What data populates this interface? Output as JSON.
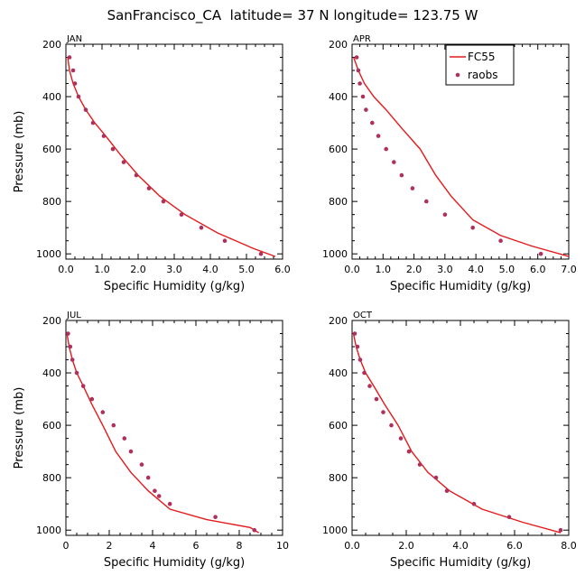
{
  "figure": {
    "title": "SanFrancisco_CA  latitude= 37 N longitude= 123.75 W"
  },
  "chart_data": [
    {
      "type": "line",
      "panel": "JAN",
      "xlabel": "Specific Humidity (g/kg)",
      "ylabel": "Pressure (mb)",
      "xlim": [
        0,
        6
      ],
      "ylim": [
        1020,
        200
      ],
      "xticks": [
        "0.0",
        "1.0",
        "2.0",
        "3.0",
        "4.0",
        "5.0",
        "6.0"
      ],
      "xtick_values": [
        0,
        1,
        2,
        3,
        4,
        5,
        6
      ],
      "yticks": [
        "200",
        "400",
        "600",
        "800",
        "1000"
      ],
      "ytick_values": [
        200,
        400,
        600,
        800,
        1000
      ],
      "grid": false,
      "legend": null,
      "series": [
        {
          "name": "FC55",
          "style": "line",
          "color": "#e41a1c",
          "x": [
            0.05,
            0.1,
            0.2,
            0.35,
            0.55,
            0.8,
            1.1,
            1.5,
            2.0,
            2.6,
            3.3,
            4.2,
            5.2,
            5.8
          ],
          "y": [
            250,
            300,
            350,
            400,
            450,
            500,
            550,
            620,
            700,
            780,
            850,
            920,
            980,
            1010
          ]
        },
        {
          "name": "raobs",
          "style": "markers",
          "color": "#b0305c",
          "x": [
            0.1,
            0.2,
            0.25,
            0.35,
            0.55,
            0.75,
            1.05,
            1.3,
            1.6,
            1.95,
            2.3,
            2.7,
            3.2,
            3.75,
            4.4,
            5.4
          ],
          "y": [
            250,
            300,
            350,
            400,
            450,
            500,
            550,
            600,
            650,
            700,
            750,
            800,
            850,
            900,
            950,
            1000
          ]
        }
      ]
    },
    {
      "type": "line",
      "panel": "APR",
      "xlabel": "Specific Humidity (g/kg)",
      "ylabel": "",
      "xlim": [
        0,
        7
      ],
      "ylim": [
        1020,
        200
      ],
      "xticks": [
        "0.0",
        "1.0",
        "2.0",
        "3.0",
        "4.0",
        "5.0",
        "6.0",
        "7.0"
      ],
      "xtick_values": [
        0,
        1,
        2,
        3,
        4,
        5,
        6,
        7
      ],
      "yticks": [
        "200",
        "400",
        "600",
        "800",
        "1000"
      ],
      "ytick_values": [
        200,
        400,
        600,
        800,
        1000
      ],
      "grid": false,
      "legend": "top-right",
      "series": [
        {
          "name": "FC55",
          "style": "line",
          "color": "#e41a1c",
          "x": [
            0.05,
            0.2,
            0.4,
            0.7,
            1.1,
            1.6,
            2.2,
            2.7,
            3.2,
            3.9,
            4.8,
            5.8,
            7.0
          ],
          "y": [
            250,
            300,
            350,
            400,
            450,
            520,
            600,
            700,
            780,
            870,
            930,
            970,
            1010
          ]
        },
        {
          "name": "raobs",
          "style": "markers",
          "color": "#b0305c",
          "x": [
            0.15,
            0.2,
            0.25,
            0.35,
            0.45,
            0.65,
            0.85,
            1.1,
            1.35,
            1.6,
            1.95,
            2.4,
            3.0,
            3.9,
            4.8,
            6.1
          ],
          "y": [
            250,
            300,
            350,
            400,
            450,
            500,
            550,
            600,
            650,
            700,
            750,
            800,
            850,
            900,
            950,
            1000
          ]
        }
      ]
    },
    {
      "type": "line",
      "panel": "JUL",
      "xlabel": "Specific Humidity (g/kg)",
      "ylabel": "Pressure (mb)",
      "xlim": [
        0,
        10
      ],
      "ylim": [
        1020,
        200
      ],
      "xticks": [
        "0",
        "2",
        "4",
        "6",
        "8",
        "10"
      ],
      "xtick_values": [
        0,
        2,
        4,
        6,
        8,
        10
      ],
      "yticks": [
        "200",
        "400",
        "600",
        "800",
        "1000"
      ],
      "ytick_values": [
        200,
        400,
        600,
        800,
        1000
      ],
      "grid": false,
      "legend": null,
      "series": [
        {
          "name": "FC55",
          "style": "line",
          "color": "#e41a1c",
          "x": [
            0.05,
            0.15,
            0.3,
            0.5,
            0.8,
            1.2,
            1.7,
            2.3,
            3.0,
            3.8,
            4.8,
            6.5,
            8.5,
            8.9
          ],
          "y": [
            250,
            300,
            350,
            400,
            450,
            520,
            600,
            700,
            780,
            850,
            920,
            960,
            990,
            1010
          ]
        },
        {
          "name": "raobs",
          "style": "markers",
          "color": "#b0305c",
          "x": [
            0.1,
            0.2,
            0.3,
            0.5,
            0.8,
            1.2,
            1.7,
            2.2,
            2.7,
            3.0,
            3.5,
            3.8,
            4.1,
            4.3,
            4.8,
            6.9,
            8.7
          ],
          "y": [
            250,
            300,
            350,
            400,
            450,
            500,
            550,
            600,
            650,
            700,
            750,
            800,
            850,
            870,
            900,
            950,
            1000
          ]
        }
      ]
    },
    {
      "type": "line",
      "panel": "OCT",
      "xlabel": "Specific Humidity (g/kg)",
      "ylabel": "",
      "xlim": [
        0,
        8
      ],
      "ylim": [
        1020,
        200
      ],
      "xticks": [
        "0.0",
        "2.0",
        "4.0",
        "6.0",
        "8.0"
      ],
      "xtick_values": [
        0,
        2,
        4,
        6,
        8
      ],
      "yticks": [
        "200",
        "400",
        "600",
        "800",
        "1000"
      ],
      "ytick_values": [
        200,
        400,
        600,
        800,
        1000
      ],
      "grid": false,
      "legend": null,
      "series": [
        {
          "name": "FC55",
          "style": "line",
          "color": "#e41a1c",
          "x": [
            0.05,
            0.15,
            0.3,
            0.5,
            0.8,
            1.2,
            1.7,
            2.2,
            2.8,
            3.6,
            4.8,
            6.3,
            7.7
          ],
          "y": [
            250,
            300,
            350,
            400,
            450,
            520,
            600,
            700,
            780,
            850,
            920,
            970,
            1010
          ]
        },
        {
          "name": "raobs",
          "style": "markers",
          "color": "#b0305c",
          "x": [
            0.1,
            0.2,
            0.3,
            0.45,
            0.65,
            0.9,
            1.15,
            1.45,
            1.8,
            2.1,
            2.5,
            3.1,
            3.5,
            4.5,
            5.8,
            7.7
          ],
          "y": [
            250,
            300,
            350,
            400,
            450,
            500,
            550,
            600,
            650,
            700,
            750,
            800,
            850,
            900,
            950,
            1000
          ]
        }
      ]
    }
  ]
}
